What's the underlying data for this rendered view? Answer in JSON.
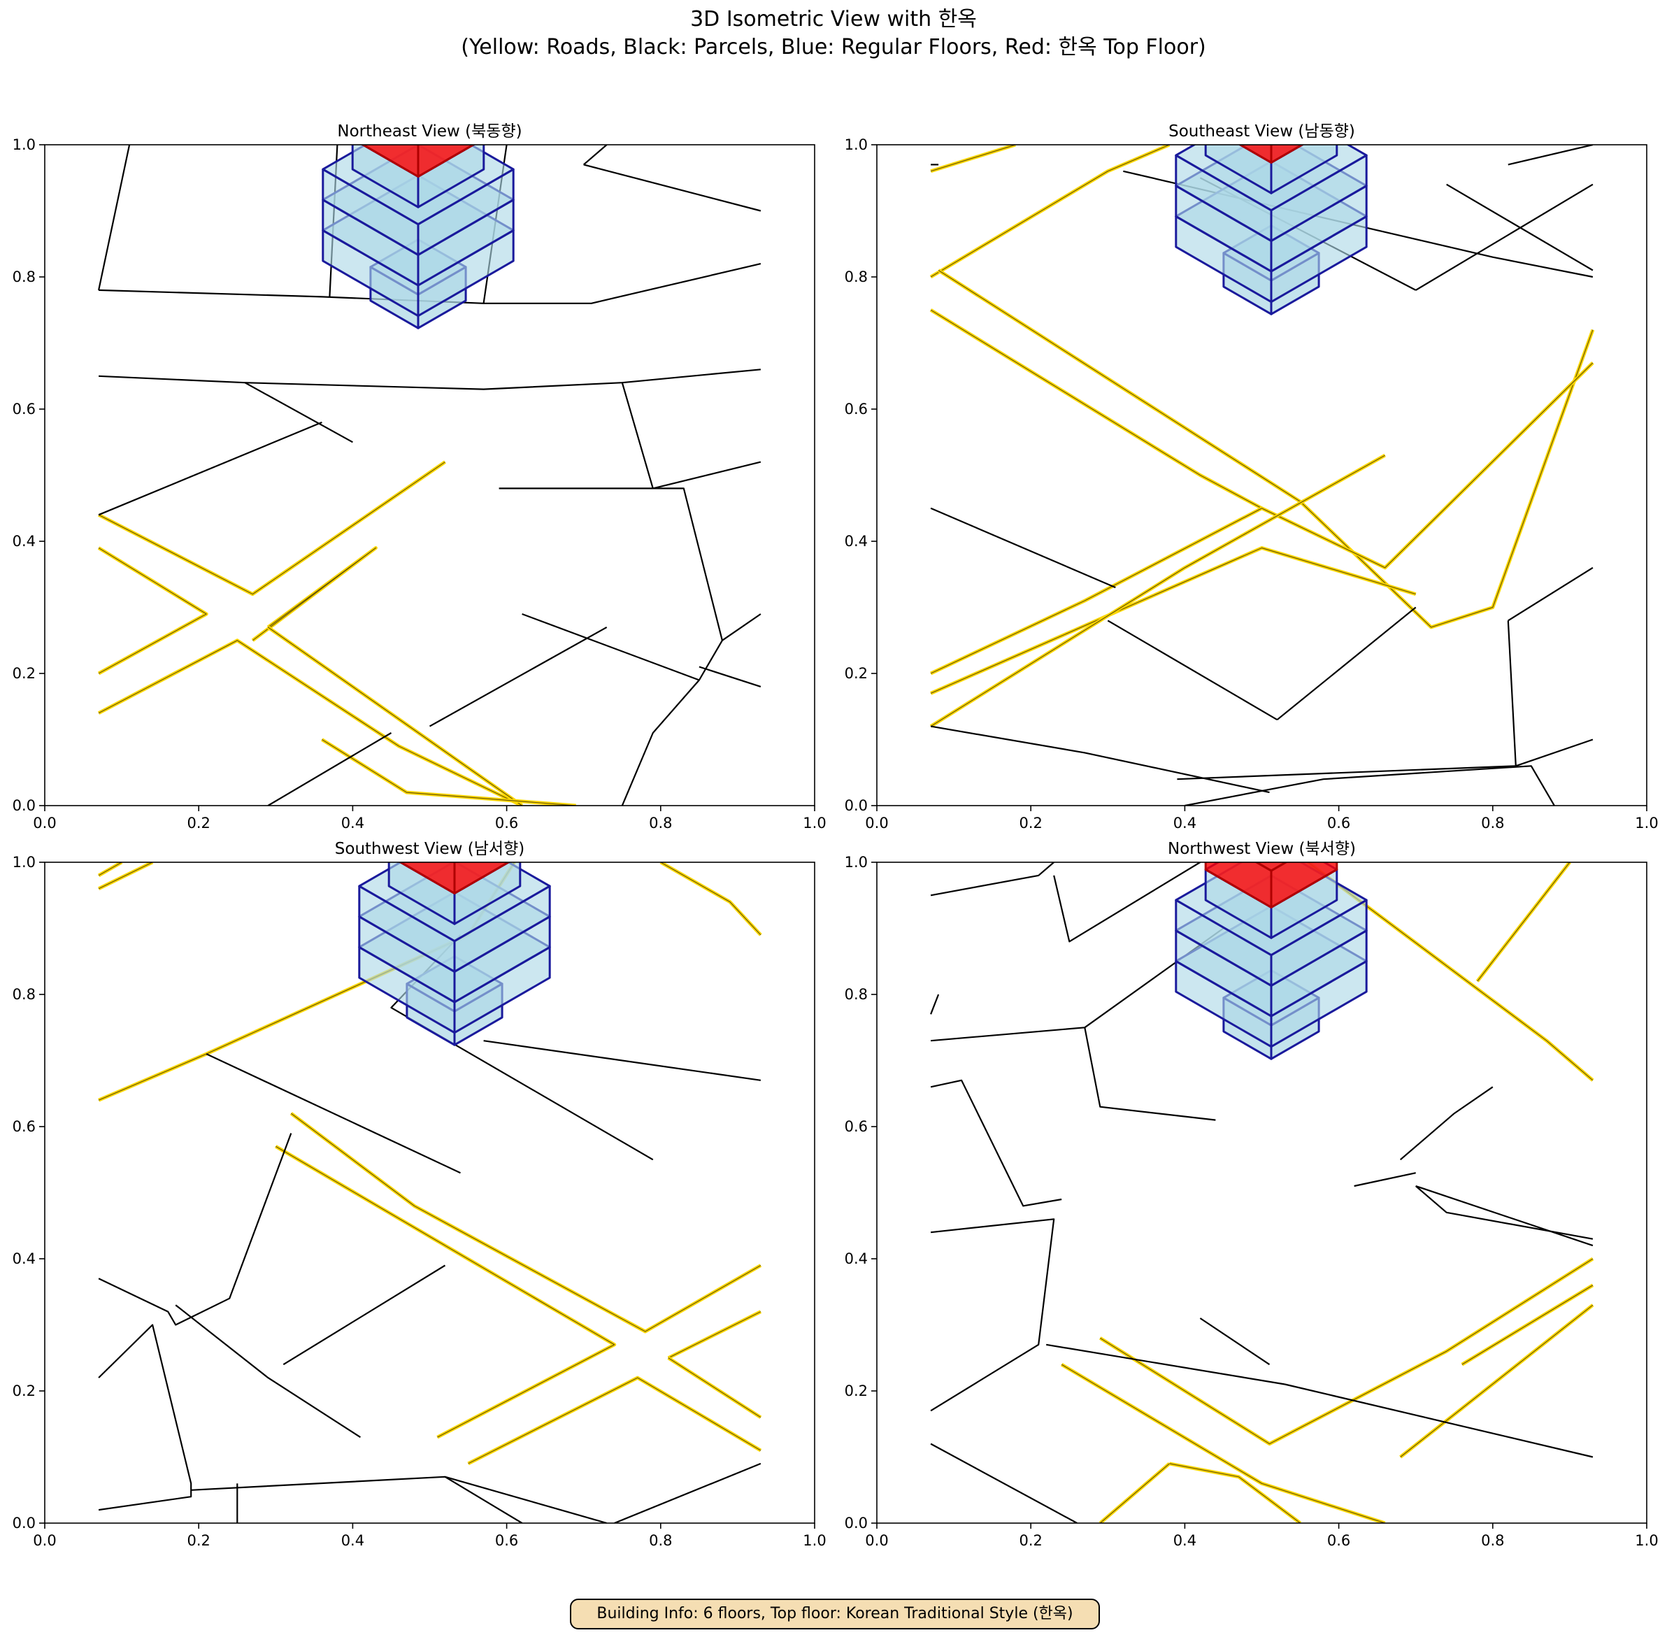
{
  "figure": {
    "title_line1": "3D Isometric View with 한옥",
    "title_line2": "(Yellow: Roads, Black: Parcels, Blue: Regular Floors, Red: 한옥 Top Floor)",
    "info_text": "Building Info: 6 floors, Top floor: Korean Traditional Style (한옥)"
  },
  "legend": {
    "road_color": "#FFD700",
    "parcel_color": "#000000",
    "floor_fill": "#ADD8E6",
    "floor_edge": "#1a1a9c",
    "hanok_fill": "#FF0000",
    "hanok_edge": "#b00000",
    "info_bg": "#F5DEB3"
  },
  "axis_ticks": [
    "0.0",
    "0.2",
    "0.4",
    "0.6",
    "0.8",
    "1.0"
  ],
  "panels": [
    {
      "title": "Northeast View (북동향)"
    },
    {
      "title": "Southeast View (남동향)"
    },
    {
      "title": "Southwest View (남서향)"
    },
    {
      "title": "Northwest View (북서향)"
    }
  ],
  "chart_data": {
    "type": "diagram",
    "title": "3D Isometric View with 한옥",
    "floors": 6,
    "top_floor_style": "Korean Traditional Style (한옥)",
    "xlim": [
      0,
      1
    ],
    "ylim": [
      0,
      1
    ],
    "xticks": [
      0.0,
      0.2,
      0.4,
      0.6,
      0.8,
      1.0
    ],
    "yticks": [
      0.0,
      0.2,
      0.4,
      0.6,
      0.8,
      1.0
    ],
    "views": [
      "Northeast",
      "Southeast",
      "Southwest",
      "Northwest"
    ]
  }
}
